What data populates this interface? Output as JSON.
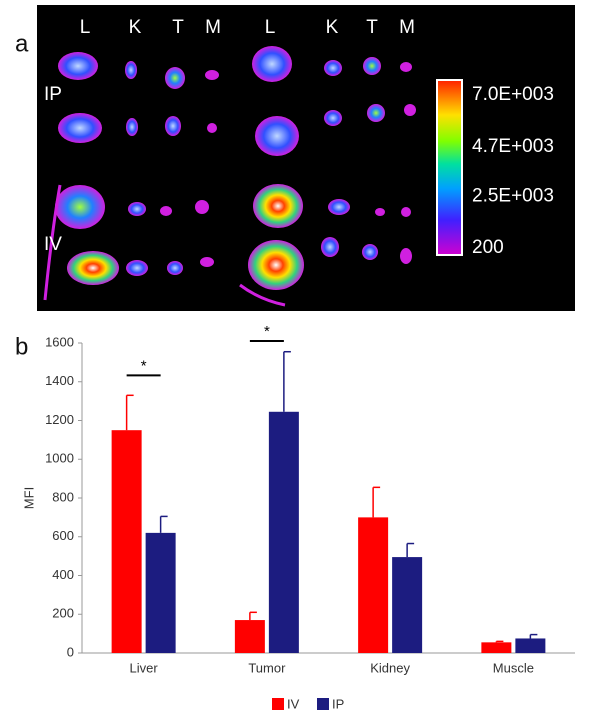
{
  "panel_a": {
    "label": "a",
    "column_labels": [
      "L",
      "K",
      "T",
      "M",
      "L",
      "K",
      "T",
      "M"
    ],
    "row_labels": [
      "IP",
      "IV"
    ],
    "colorbar": {
      "lim": [
        200,
        7000
      ],
      "ticks": [
        {
          "value": 7000,
          "label": "7.0E+003"
        },
        {
          "value": 4700,
          "label": "4.7E+003"
        },
        {
          "value": 2500,
          "label": "2.5E+003"
        },
        200
      ]
    }
  },
  "chart_data": {
    "type": "bar",
    "panel_label": "b",
    "y_label": "MFI",
    "categories": [
      "Liver",
      "Tumor",
      "Kidney",
      "Muscle"
    ],
    "series": [
      {
        "name": "IV",
        "color": "#ff0000",
        "values": [
          1150,
          170,
          700,
          55
        ],
        "errors": [
          180,
          40,
          155,
          5
        ]
      },
      {
        "name": "IP",
        "color": "#1c1c80",
        "values": [
          620,
          1245,
          495,
          75
        ],
        "errors": [
          85,
          310,
          70,
          20
        ]
      }
    ],
    "significance": [
      "*",
      "*",
      null,
      null
    ],
    "ylim": [
      0,
      1600
    ],
    "yticks": [
      0,
      200,
      400,
      600,
      800,
      1000,
      1200,
      1400,
      1600
    ]
  }
}
